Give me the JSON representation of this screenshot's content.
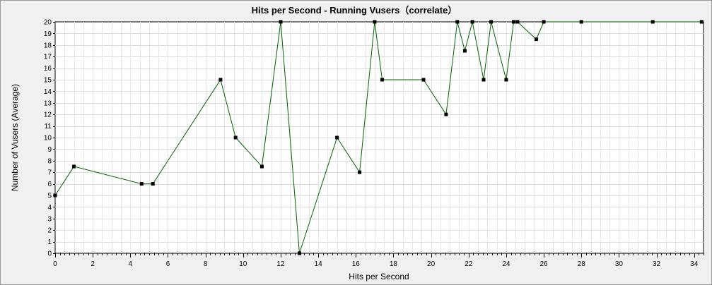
{
  "chart_data": {
    "type": "line",
    "title": "Hits per Second - Running Vusers（correlate）",
    "xlabel": "Hits per Second",
    "ylabel": "Number of Vusers (Average)",
    "xlim": [
      0,
      34.5
    ],
    "ylim": [
      0,
      20
    ],
    "xticks": [
      0,
      2,
      4,
      6,
      8,
      10,
      12,
      14,
      16,
      18,
      20,
      22,
      24,
      26,
      28,
      30,
      32,
      34
    ],
    "yticks": [
      0,
      1,
      2,
      3,
      4,
      5,
      6,
      7,
      8,
      9,
      10,
      11,
      12,
      13,
      14,
      15,
      16,
      17,
      18,
      19,
      20
    ],
    "grid": true,
    "legend": "none",
    "line_color": "#006400",
    "marker_color": "#000000",
    "series": [
      {
        "x": [
          0,
          1,
          4.6,
          5.2,
          8.8,
          9.6,
          11,
          12,
          13,
          15,
          16.2,
          17,
          17.4,
          19.6,
          20.8,
          21.4,
          21.8,
          22.2,
          22.8,
          23.2,
          24,
          24.4,
          24.6,
          25.6,
          26,
          28,
          31.8,
          34.4
        ],
        "y": [
          5,
          7.5,
          6,
          6,
          15,
          10,
          7.5,
          20,
          0,
          10,
          7,
          20,
          15,
          15,
          12,
          20,
          17.5,
          20,
          15,
          20,
          15,
          20,
          20,
          18.5,
          20,
          20,
          20,
          20
        ]
      }
    ]
  }
}
